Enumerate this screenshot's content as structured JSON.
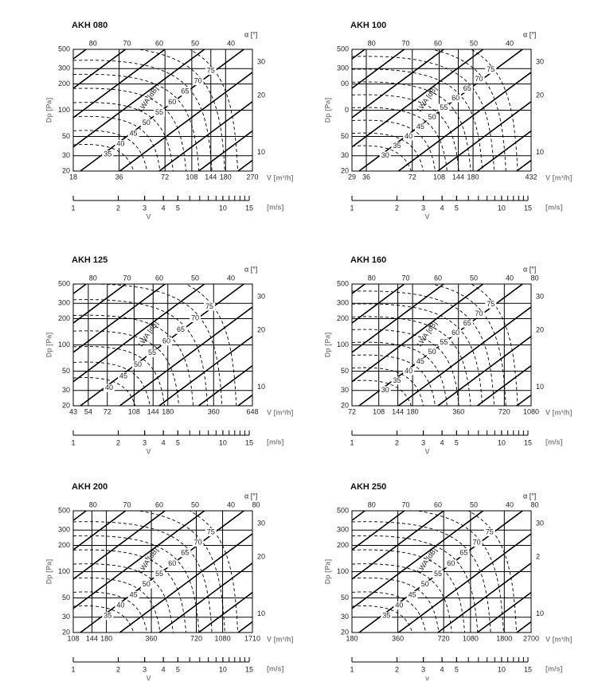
{
  "panels": [
    {
      "title": "AKH 080",
      "alpha_label": "α [°]",
      "y_label": "Dp [Pa]",
      "x_label": "V [m³/h]",
      "v_unit": "[m/s]",
      "v_label": "V",
      "curve_label": "LWA [dB]",
      "xlim": [
        18,
        270
      ],
      "xticks": [
        18,
        36,
        72,
        108,
        144,
        180,
        270
      ],
      "ylim": [
        20,
        500
      ],
      "yticks": [
        20,
        30,
        50,
        100,
        200,
        300,
        500
      ],
      "alpha_ticks": [
        80,
        70,
        60,
        50,
        40
      ],
      "right_ticks": [
        30,
        20,
        10
      ],
      "curves": [
        35,
        40,
        45,
        50,
        55,
        60,
        65,
        70,
        75
      ],
      "vlim": [
        1,
        15
      ],
      "vticks": [
        1,
        2,
        3,
        4,
        5,
        10,
        15
      ]
    },
    {
      "title": "AKH 100",
      "alpha_label": "α [°]",
      "y_label": "Dp [Pa]",
      "x_label": "V [m³/h]",
      "v_unit": "[m/s]",
      "v_label": "V",
      "curve_label": "LWA [dB]",
      "xlim": [
        29,
        432
      ],
      "xticks": [
        29,
        36,
        72,
        108,
        144,
        180,
        432
      ],
      "ylim": [
        20,
        500
      ],
      "yticks": [
        20,
        30,
        50,
        {
          "value": 100,
          "label": "0"
        },
        {
          "value": 200,
          "label": "00"
        },
        300,
        500
      ],
      "alpha_ticks": [
        80,
        70,
        60,
        50,
        40
      ],
      "right_ticks": [
        30,
        20,
        10
      ],
      "curves": [
        30,
        35,
        40,
        45,
        50,
        55,
        60,
        65,
        70,
        75
      ],
      "vlim": [
        1,
        15
      ],
      "vticks": [
        1,
        2,
        3,
        4,
        5,
        10,
        15
      ]
    },
    {
      "title": "AKH 125",
      "alpha_label": "α [°]",
      "y_label": "Dp [Pa]",
      "x_label": "V [m³/h]",
      "v_unit": "[m/s]",
      "v_label": "V",
      "curve_label": "LWA [dB]",
      "xlim": [
        43,
        648
      ],
      "xticks": [
        43,
        54,
        72,
        108,
        144,
        180,
        360,
        648
      ],
      "ylim": [
        20,
        500
      ],
      "yticks": [
        20,
        30,
        50,
        100,
        200,
        300,
        500
      ],
      "alpha_ticks": [
        80,
        70,
        60,
        50,
        40
      ],
      "right_ticks": [
        30,
        20,
        10
      ],
      "curves": [
        40,
        45,
        50,
        55,
        60,
        65,
        70,
        75
      ],
      "vlim": [
        1,
        15
      ],
      "vticks": [
        1,
        2,
        3,
        4,
        5,
        10,
        15
      ]
    },
    {
      "title": "AKH 160",
      "alpha_label": "α [°]",
      "y_label": "Dp [Pa]",
      "x_label": "V [m³/h]",
      "v_unit": "[m/s]",
      "v_label": "V",
      "curve_label": "LWA [dB]",
      "xlim": [
        72,
        1080
      ],
      "xticks": [
        72,
        108,
        144,
        180,
        360,
        720,
        1080
      ],
      "ylim": [
        20,
        500
      ],
      "yticks": [
        20,
        30,
        50,
        100,
        200,
        300,
        500
      ],
      "alpha_ticks": [
        80,
        70,
        60,
        50,
        40,
        80
      ],
      "right_ticks": [
        30,
        20,
        10
      ],
      "curves": [
        30,
        35,
        40,
        45,
        50,
        55,
        60,
        65,
        70,
        75
      ],
      "vlim": [
        1,
        15
      ],
      "vticks": [
        1,
        2,
        3,
        4,
        5,
        10,
        15
      ]
    },
    {
      "title": "AKH 200",
      "alpha_label": "α [°]",
      "y_label": "Dp [Pa]",
      "x_label": "V [m³/h]",
      "v_unit": "[m/s]",
      "v_label": "V",
      "curve_label": "LWA [dB]",
      "xlim": [
        108,
        1710
      ],
      "xticks": [
        108,
        144,
        180,
        360,
        720,
        1080,
        1710
      ],
      "ylim": [
        20,
        500
      ],
      "yticks": [
        20,
        30,
        50,
        100,
        200,
        300,
        500
      ],
      "alpha_ticks": [
        80,
        70,
        60,
        50,
        40,
        80
      ],
      "right_ticks": [
        30,
        20,
        10
      ],
      "curves": [
        35,
        40,
        45,
        50,
        55,
        60,
        65,
        70,
        75
      ],
      "vlim": [
        1,
        15
      ],
      "vticks": [
        1,
        2,
        3,
        4,
        5,
        10,
        15
      ]
    },
    {
      "title": "AKH 250",
      "alpha_label": "α [°]",
      "y_label": "Dp [Pa]",
      "x_label": "V [m³/h]",
      "v_unit": "[m/s]",
      "v_label": "v",
      "curve_label": "LWA [dB]",
      "xlim": [
        180,
        2700
      ],
      "xticks": [
        180,
        360,
        720,
        1080,
        1800,
        2700
      ],
      "ylim": [
        20,
        500
      ],
      "yticks": [
        20,
        30,
        50,
        100,
        200,
        300,
        500
      ],
      "alpha_ticks": [
        80,
        70,
        60,
        50,
        40,
        80
      ],
      "right_ticks": [
        30,
        {
          "value": 20,
          "label": "2"
        },
        10
      ],
      "curves": [
        35,
        40,
        45,
        50,
        55,
        60,
        65,
        70,
        75
      ],
      "vlim": [
        1,
        15
      ],
      "vticks": [
        1,
        2,
        3,
        4,
        5,
        10,
        15
      ]
    }
  ]
}
